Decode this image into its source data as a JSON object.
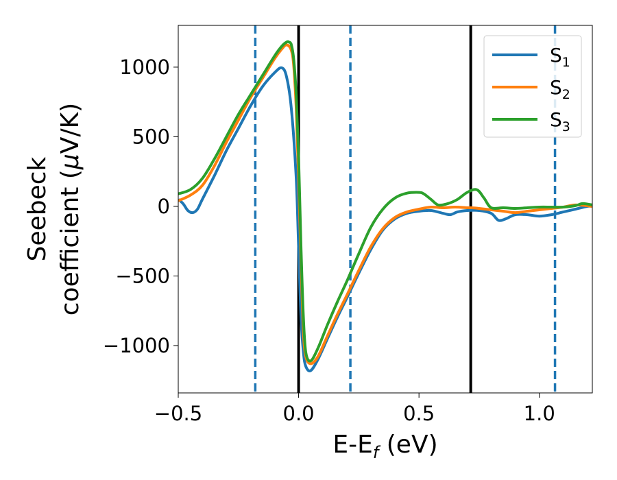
{
  "chart_data": {
    "type": "line",
    "xlabel": "E-E",
    "xlabel_sub": "f",
    "xlabel_unit": " (eV)",
    "ylabel_line1": "Seebeck",
    "ylabel_line2_pre": "coefficient  (",
    "ylabel_mu": "μ",
    "ylabel_line2_post": "V/K)",
    "xlim": [
      -0.5,
      1.22
    ],
    "ylim": [
      -1340,
      1300
    ],
    "xticks": [
      -0.5,
      0.0,
      0.5,
      1.0
    ],
    "xtick_labels": [
      "−0.5",
      "0.0",
      "0.5",
      "1.0"
    ],
    "yticks": [
      -1000,
      -500,
      0,
      500,
      1000
    ],
    "ytick_labels": [
      "−1000",
      "−500",
      "0",
      "500",
      "1000"
    ],
    "grid": false,
    "legend_position": "top-right",
    "series": [
      {
        "name": "S",
        "name_sub": "1",
        "color": "#1f77b4",
        "x": [
          -0.5,
          -0.48,
          -0.46,
          -0.44,
          -0.42,
          -0.4,
          -0.35,
          -0.3,
          -0.25,
          -0.2,
          -0.15,
          -0.1,
          -0.07,
          -0.05,
          -0.03,
          -0.01,
          0.0,
          0.01,
          0.02,
          0.03,
          0.05,
          0.08,
          0.12,
          0.16,
          0.2,
          0.25,
          0.3,
          0.35,
          0.4,
          0.45,
          0.5,
          0.55,
          0.6,
          0.63,
          0.66,
          0.7,
          0.75,
          0.8,
          0.83,
          0.86,
          0.9,
          0.95,
          1.0,
          1.05,
          1.1,
          1.15,
          1.2,
          1.22
        ],
        "y": [
          50,
          20,
          -30,
          -45,
          -20,
          50,
          220,
          400,
          560,
          720,
          860,
          960,
          995,
          930,
          700,
          200,
          -300,
          -800,
          -1050,
          -1150,
          -1180,
          -1100,
          -950,
          -800,
          -660,
          -480,
          -310,
          -170,
          -90,
          -50,
          -35,
          -30,
          -50,
          -60,
          -40,
          -30,
          -30,
          -50,
          -100,
          -90,
          -60,
          -60,
          -70,
          -60,
          -40,
          -20,
          0,
          0
        ]
      },
      {
        "name": "S",
        "name_sub": "2",
        "color": "#ff7f0e",
        "x": [
          -0.5,
          -0.45,
          -0.4,
          -0.35,
          -0.3,
          -0.25,
          -0.2,
          -0.15,
          -0.1,
          -0.07,
          -0.05,
          -0.03,
          -0.02,
          -0.01,
          0.0,
          0.01,
          0.02,
          0.03,
          0.05,
          0.08,
          0.12,
          0.16,
          0.2,
          0.25,
          0.3,
          0.35,
          0.4,
          0.45,
          0.5,
          0.55,
          0.6,
          0.65,
          0.7,
          0.72,
          0.75,
          0.8,
          0.85,
          0.9,
          0.95,
          1.0,
          1.05,
          1.1,
          1.15,
          1.22
        ],
        "y": [
          40,
          80,
          150,
          290,
          460,
          620,
          780,
          920,
          1060,
          1130,
          1160,
          1120,
          1000,
          700,
          200,
          -400,
          -900,
          -1080,
          -1130,
          -1080,
          -930,
          -780,
          -640,
          -460,
          -290,
          -160,
          -80,
          -40,
          -20,
          -5,
          -10,
          -5,
          -10,
          -10,
          -15,
          -25,
          -35,
          -45,
          -35,
          -25,
          -15,
          -5,
          10,
          0
        ]
      },
      {
        "name": "S",
        "name_sub": "3",
        "color": "#2ca02c",
        "x": [
          -0.5,
          -0.45,
          -0.4,
          -0.35,
          -0.3,
          -0.25,
          -0.2,
          -0.15,
          -0.1,
          -0.07,
          -0.05,
          -0.04,
          -0.03,
          -0.02,
          -0.01,
          0.0,
          0.01,
          0.02,
          0.03,
          0.05,
          0.08,
          0.12,
          0.16,
          0.2,
          0.25,
          0.3,
          0.35,
          0.4,
          0.45,
          0.5,
          0.52,
          0.55,
          0.58,
          0.62,
          0.66,
          0.7,
          0.74,
          0.77,
          0.8,
          0.85,
          0.9,
          0.95,
          1.0,
          1.05,
          1.1,
          1.15,
          1.18,
          1.22
        ],
        "y": [
          90,
          120,
          200,
          340,
          500,
          660,
          800,
          940,
          1080,
          1150,
          1180,
          1180,
          1160,
          1050,
          800,
          350,
          -300,
          -800,
          -1050,
          -1110,
          -1020,
          -850,
          -690,
          -540,
          -340,
          -150,
          -20,
          60,
          95,
          100,
          90,
          50,
          10,
          20,
          50,
          100,
          120,
          60,
          -10,
          -10,
          -15,
          -10,
          -5,
          -5,
          -5,
          5,
          20,
          10
        ]
      }
    ],
    "vertical_lines": [
      {
        "x": 0.0,
        "style": "solid",
        "color": "#000000"
      },
      {
        "x": 0.715,
        "style": "solid",
        "color": "#000000"
      },
      {
        "x": -0.18,
        "style": "dashed",
        "color": "#1f77b4"
      },
      {
        "x": 0.215,
        "style": "dashed",
        "color": "#1f77b4"
      },
      {
        "x": 1.065,
        "style": "dashed",
        "color": "#1f77b4"
      }
    ]
  }
}
